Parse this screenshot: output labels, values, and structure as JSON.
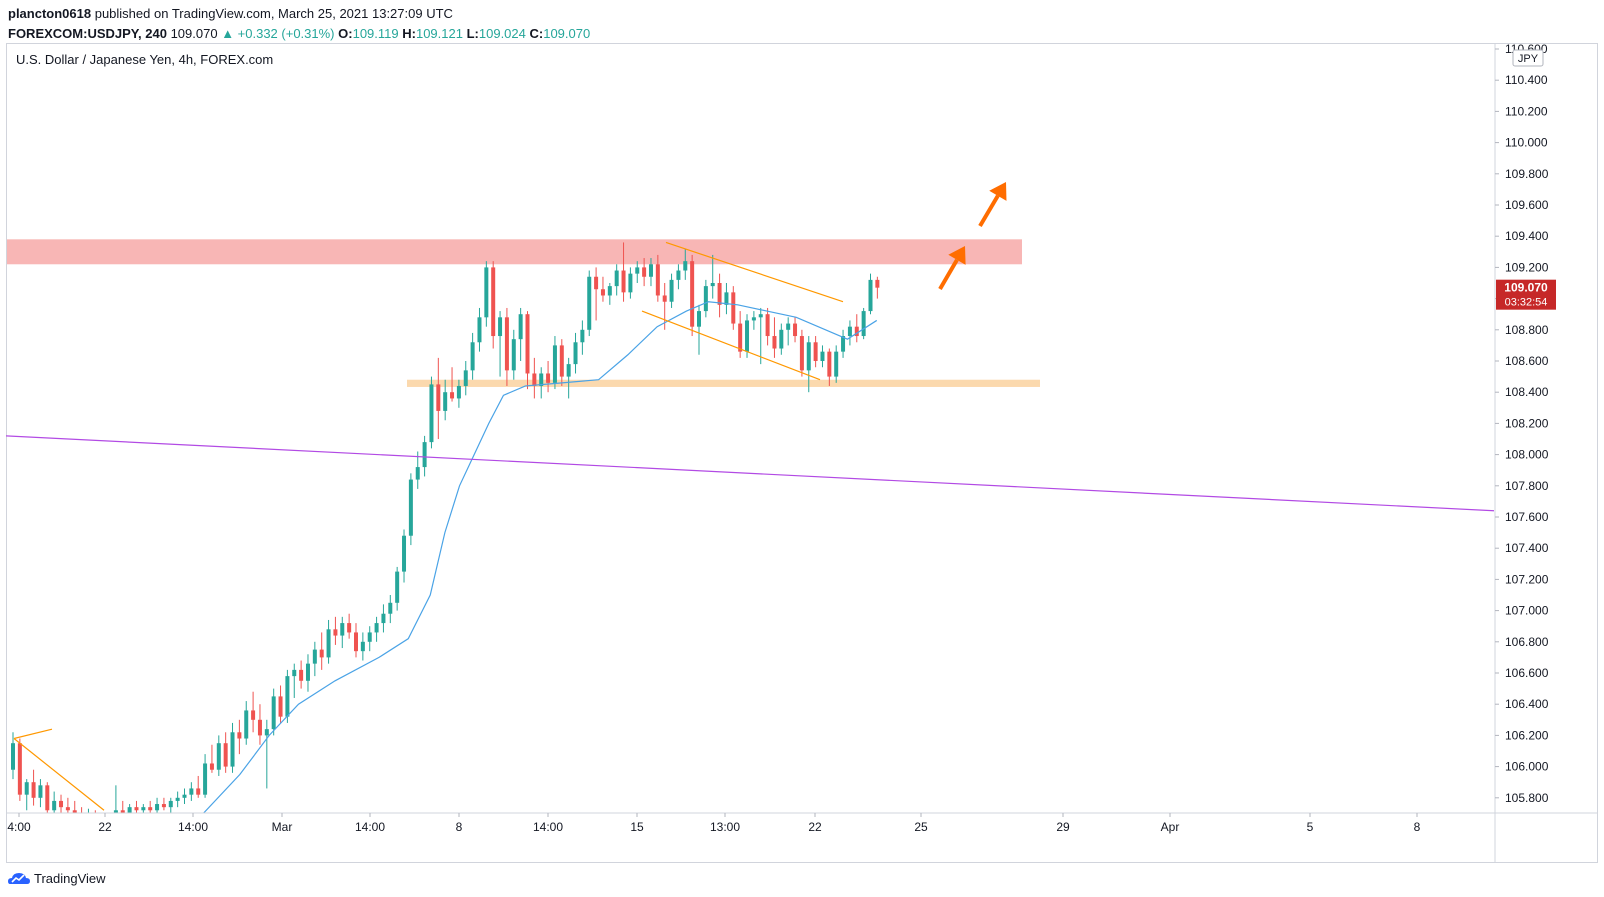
{
  "header": {
    "publisher": "plancton0618",
    "published_text": "published on TradingView.com, March 25, 2021 13:27:09 UTC",
    "symbol": "FOREXCOM:USDJPY, 240",
    "last": "109.070",
    "change": "▲ +0.332 (+0.31%)",
    "o_label": "O:",
    "o_value": "109.119",
    "h_label": "H:",
    "h_value": "109.121",
    "l_label": "L:",
    "l_value": "109.024",
    "c_label": "C:",
    "c_value": "109.070"
  },
  "chart_title": "U.S. Dollar / Japanese Yen, 4h, FOREX.com",
  "footer": {
    "brand": "TradingView"
  },
  "colors": {
    "up": "#26a69a",
    "down": "#ef5350",
    "ma": "#4aa3e6",
    "resistance": "#f7a9a8",
    "support": "#fbd5a5",
    "trendline": "#b24ae4",
    "channel": "#ff9800",
    "arrow": "#ff6d00",
    "price_tag": "#c62828"
  },
  "chart_data": {
    "type": "candlestick",
    "currency": "JPY",
    "y_ticks": [
      "110.600",
      "110.400",
      "110.200",
      "110.000",
      "109.800",
      "109.600",
      "109.400",
      "109.200",
      "109.000",
      "108.800",
      "108.600",
      "108.400",
      "108.200",
      "108.000",
      "107.800",
      "107.600",
      "107.400",
      "107.200",
      "107.000",
      "106.800",
      "106.600",
      "106.400",
      "106.200",
      "106.000",
      "105.800"
    ],
    "ylim": [
      105.7,
      110.65
    ],
    "x_ticks": [
      "4:00",
      "22",
      "14:00",
      "Mar",
      "14:00",
      "8",
      "14:00",
      "15",
      "13:00",
      "22",
      "25",
      "29",
      "Apr",
      "5",
      "8"
    ],
    "last_price": "109.070",
    "countdown": "03:32:54",
    "candles": [
      {
        "o": 105.98,
        "h": 106.22,
        "l": 105.92,
        "c": 106.15
      },
      {
        "o": 106.15,
        "h": 106.18,
        "l": 105.78,
        "c": 105.82
      },
      {
        "o": 105.82,
        "h": 105.92,
        "l": 105.72,
        "c": 105.9
      },
      {
        "o": 105.9,
        "h": 105.98,
        "l": 105.75,
        "c": 105.8
      },
      {
        "o": 105.8,
        "h": 105.92,
        "l": 105.74,
        "c": 105.88
      },
      {
        "o": 105.88,
        "h": 105.9,
        "l": 105.7,
        "c": 105.72
      },
      {
        "o": 105.72,
        "h": 105.84,
        "l": 105.7,
        "c": 105.78
      },
      {
        "o": 105.78,
        "h": 105.82,
        "l": 105.7,
        "c": 105.74
      },
      {
        "o": 105.74,
        "h": 105.8,
        "l": 105.7,
        "c": 105.72
      },
      {
        "o": 105.72,
        "h": 105.78,
        "l": 105.68,
        "c": 105.7
      },
      {
        "o": 105.7,
        "h": 105.74,
        "l": 105.66,
        "c": 105.68
      },
      {
        "o": 105.68,
        "h": 105.73,
        "l": 105.64,
        "c": 105.7
      },
      {
        "o": 105.7,
        "h": 105.72,
        "l": 105.62,
        "c": 105.66
      },
      {
        "o": 105.66,
        "h": 105.7,
        "l": 105.62,
        "c": 105.64
      },
      {
        "o": 105.64,
        "h": 105.68,
        "l": 105.6,
        "c": 105.66
      },
      {
        "o": 105.66,
        "h": 105.88,
        "l": 105.62,
        "c": 105.72
      },
      {
        "o": 105.72,
        "h": 105.78,
        "l": 105.66,
        "c": 105.7
      },
      {
        "o": 105.7,
        "h": 105.76,
        "l": 105.66,
        "c": 105.74
      },
      {
        "o": 105.74,
        "h": 105.78,
        "l": 105.68,
        "c": 105.72
      },
      {
        "o": 105.72,
        "h": 105.76,
        "l": 105.66,
        "c": 105.74
      },
      {
        "o": 105.74,
        "h": 105.78,
        "l": 105.7,
        "c": 105.72
      },
      {
        "o": 105.72,
        "h": 105.8,
        "l": 105.7,
        "c": 105.76
      },
      {
        "o": 105.76,
        "h": 105.8,
        "l": 105.72,
        "c": 105.74
      },
      {
        "o": 105.74,
        "h": 105.8,
        "l": 105.7,
        "c": 105.78
      },
      {
        "o": 105.78,
        "h": 105.84,
        "l": 105.74,
        "c": 105.8
      },
      {
        "o": 105.8,
        "h": 105.86,
        "l": 105.76,
        "c": 105.82
      },
      {
        "o": 105.82,
        "h": 105.9,
        "l": 105.78,
        "c": 105.86
      },
      {
        "o": 105.86,
        "h": 105.94,
        "l": 105.8,
        "c": 105.82
      },
      {
        "o": 105.82,
        "h": 106.08,
        "l": 105.8,
        "c": 106.02
      },
      {
        "o": 106.02,
        "h": 106.14,
        "l": 105.96,
        "c": 105.98
      },
      {
        "o": 105.98,
        "h": 106.2,
        "l": 105.94,
        "c": 106.15
      },
      {
        "o": 106.15,
        "h": 106.22,
        "l": 105.96,
        "c": 106.0
      },
      {
        "o": 106.0,
        "h": 106.28,
        "l": 105.96,
        "c": 106.22
      },
      {
        "o": 106.22,
        "h": 106.3,
        "l": 106.08,
        "c": 106.18
      },
      {
        "o": 106.18,
        "h": 106.42,
        "l": 106.14,
        "c": 106.36
      },
      {
        "o": 106.36,
        "h": 106.48,
        "l": 106.22,
        "c": 106.3
      },
      {
        "o": 106.3,
        "h": 106.4,
        "l": 106.14,
        "c": 106.2
      },
      {
        "o": 106.2,
        "h": 106.3,
        "l": 105.86,
        "c": 106.24
      },
      {
        "o": 106.24,
        "h": 106.5,
        "l": 106.2,
        "c": 106.45
      },
      {
        "o": 106.45,
        "h": 106.52,
        "l": 106.28,
        "c": 106.32
      },
      {
        "o": 106.32,
        "h": 106.62,
        "l": 106.28,
        "c": 106.58
      },
      {
        "o": 106.58,
        "h": 106.66,
        "l": 106.44,
        "c": 106.62
      },
      {
        "o": 106.62,
        "h": 106.68,
        "l": 106.5,
        "c": 106.55
      },
      {
        "o": 106.55,
        "h": 106.72,
        "l": 106.48,
        "c": 106.66
      },
      {
        "o": 106.66,
        "h": 106.8,
        "l": 106.58,
        "c": 106.75
      },
      {
        "o": 106.75,
        "h": 106.86,
        "l": 106.62,
        "c": 106.7
      },
      {
        "o": 106.7,
        "h": 106.94,
        "l": 106.66,
        "c": 106.88
      },
      {
        "o": 106.88,
        "h": 106.96,
        "l": 106.78,
        "c": 106.84
      },
      {
        "o": 106.84,
        "h": 106.96,
        "l": 106.76,
        "c": 106.92
      },
      {
        "o": 106.92,
        "h": 106.98,
        "l": 106.82,
        "c": 106.86
      },
      {
        "o": 106.86,
        "h": 106.92,
        "l": 106.7,
        "c": 106.74
      },
      {
        "o": 106.74,
        "h": 106.86,
        "l": 106.68,
        "c": 106.8
      },
      {
        "o": 106.8,
        "h": 106.9,
        "l": 106.74,
        "c": 106.86
      },
      {
        "o": 106.86,
        "h": 106.96,
        "l": 106.8,
        "c": 106.92
      },
      {
        "o": 106.92,
        "h": 107.04,
        "l": 106.86,
        "c": 106.98
      },
      {
        "o": 106.98,
        "h": 107.1,
        "l": 106.92,
        "c": 107.05
      },
      {
        "o": 107.05,
        "h": 107.28,
        "l": 107.0,
        "c": 107.25
      },
      {
        "o": 107.25,
        "h": 107.52,
        "l": 107.18,
        "c": 107.48
      },
      {
        "o": 107.48,
        "h": 107.88,
        "l": 107.42,
        "c": 107.84
      },
      {
        "o": 107.84,
        "h": 108.02,
        "l": 107.78,
        "c": 107.92
      },
      {
        "o": 107.92,
        "h": 108.12,
        "l": 107.86,
        "c": 108.08
      },
      {
        "o": 108.08,
        "h": 108.5,
        "l": 108.04,
        "c": 108.45
      },
      {
        "o": 108.45,
        "h": 108.62,
        "l": 108.1,
        "c": 108.28
      },
      {
        "o": 108.28,
        "h": 108.48,
        "l": 108.22,
        "c": 108.4
      },
      {
        "o": 108.4,
        "h": 108.56,
        "l": 108.34,
        "c": 108.36
      },
      {
        "o": 108.36,
        "h": 108.48,
        "l": 108.3,
        "c": 108.44
      },
      {
        "o": 108.44,
        "h": 108.6,
        "l": 108.38,
        "c": 108.54
      },
      {
        "o": 108.54,
        "h": 108.78,
        "l": 108.48,
        "c": 108.72
      },
      {
        "o": 108.72,
        "h": 108.94,
        "l": 108.66,
        "c": 108.88
      },
      {
        "o": 108.88,
        "h": 109.24,
        "l": 108.82,
        "c": 109.2
      },
      {
        "o": 109.2,
        "h": 109.24,
        "l": 108.68,
        "c": 108.76
      },
      {
        "o": 108.76,
        "h": 108.92,
        "l": 108.5,
        "c": 108.88
      },
      {
        "o": 108.88,
        "h": 108.94,
        "l": 108.44,
        "c": 108.54
      },
      {
        "o": 108.54,
        "h": 108.8,
        "l": 108.48,
        "c": 108.74
      },
      {
        "o": 108.74,
        "h": 108.94,
        "l": 108.6,
        "c": 108.9
      },
      {
        "o": 108.9,
        "h": 108.92,
        "l": 108.42,
        "c": 108.52
      },
      {
        "o": 108.52,
        "h": 108.62,
        "l": 108.36,
        "c": 108.44
      },
      {
        "o": 108.44,
        "h": 108.56,
        "l": 108.36,
        "c": 108.52
      },
      {
        "o": 108.52,
        "h": 108.6,
        "l": 108.4,
        "c": 108.46
      },
      {
        "o": 108.46,
        "h": 108.76,
        "l": 108.42,
        "c": 108.7
      },
      {
        "o": 108.7,
        "h": 108.74,
        "l": 108.44,
        "c": 108.5
      },
      {
        "o": 108.5,
        "h": 108.62,
        "l": 108.36,
        "c": 108.58
      },
      {
        "o": 108.58,
        "h": 108.78,
        "l": 108.52,
        "c": 108.72
      },
      {
        "o": 108.72,
        "h": 108.86,
        "l": 108.64,
        "c": 108.8
      },
      {
        "o": 108.8,
        "h": 109.18,
        "l": 108.76,
        "c": 109.14
      },
      {
        "o": 109.14,
        "h": 109.2,
        "l": 108.86,
        "c": 109.06
      },
      {
        "o": 109.06,
        "h": 109.14,
        "l": 108.98,
        "c": 109.02
      },
      {
        "o": 109.02,
        "h": 109.1,
        "l": 108.96,
        "c": 109.08
      },
      {
        "o": 109.08,
        "h": 109.22,
        "l": 109.02,
        "c": 109.18
      },
      {
        "o": 109.18,
        "h": 109.36,
        "l": 108.98,
        "c": 109.04
      },
      {
        "o": 109.04,
        "h": 109.2,
        "l": 109.0,
        "c": 109.16
      },
      {
        "o": 109.16,
        "h": 109.24,
        "l": 109.1,
        "c": 109.2
      },
      {
        "o": 109.2,
        "h": 109.26,
        "l": 109.08,
        "c": 109.14
      },
      {
        "o": 109.14,
        "h": 109.26,
        "l": 109.08,
        "c": 109.22
      },
      {
        "o": 109.22,
        "h": 109.28,
        "l": 108.98,
        "c": 109.02
      },
      {
        "o": 109.02,
        "h": 109.1,
        "l": 108.8,
        "c": 108.98
      },
      {
        "o": 108.98,
        "h": 109.16,
        "l": 108.94,
        "c": 109.12
      },
      {
        "o": 109.12,
        "h": 109.22,
        "l": 109.06,
        "c": 109.18
      },
      {
        "o": 109.18,
        "h": 109.32,
        "l": 109.12,
        "c": 109.24
      },
      {
        "o": 109.24,
        "h": 109.28,
        "l": 108.76,
        "c": 108.82
      },
      {
        "o": 108.82,
        "h": 108.96,
        "l": 108.64,
        "c": 108.92
      },
      {
        "o": 108.92,
        "h": 109.12,
        "l": 108.88,
        "c": 109.08
      },
      {
        "o": 109.08,
        "h": 109.28,
        "l": 109.0,
        "c": 109.1
      },
      {
        "o": 109.1,
        "h": 109.16,
        "l": 108.88,
        "c": 108.96
      },
      {
        "o": 108.96,
        "h": 109.1,
        "l": 108.9,
        "c": 109.04
      },
      {
        "o": 109.04,
        "h": 109.08,
        "l": 108.8,
        "c": 108.84
      },
      {
        "o": 108.84,
        "h": 108.92,
        "l": 108.62,
        "c": 108.66
      },
      {
        "o": 108.66,
        "h": 108.9,
        "l": 108.62,
        "c": 108.86
      },
      {
        "o": 108.86,
        "h": 108.92,
        "l": 108.8,
        "c": 108.88
      },
      {
        "o": 108.88,
        "h": 108.94,
        "l": 108.58,
        "c": 108.9
      },
      {
        "o": 108.9,
        "h": 108.94,
        "l": 108.7,
        "c": 108.76
      },
      {
        "o": 108.76,
        "h": 108.88,
        "l": 108.62,
        "c": 108.68
      },
      {
        "o": 108.68,
        "h": 108.84,
        "l": 108.64,
        "c": 108.8
      },
      {
        "o": 108.8,
        "h": 108.88,
        "l": 108.7,
        "c": 108.84
      },
      {
        "o": 108.84,
        "h": 108.88,
        "l": 108.72,
        "c": 108.76
      },
      {
        "o": 108.76,
        "h": 108.8,
        "l": 108.5,
        "c": 108.54
      },
      {
        "o": 108.54,
        "h": 108.76,
        "l": 108.4,
        "c": 108.72
      },
      {
        "o": 108.72,
        "h": 108.76,
        "l": 108.56,
        "c": 108.6
      },
      {
        "o": 108.6,
        "h": 108.7,
        "l": 108.56,
        "c": 108.66
      },
      {
        "o": 108.66,
        "h": 108.68,
        "l": 108.44,
        "c": 108.5
      },
      {
        "o": 108.5,
        "h": 108.7,
        "l": 108.46,
        "c": 108.66
      },
      {
        "o": 108.66,
        "h": 108.8,
        "l": 108.62,
        "c": 108.76
      },
      {
        "o": 108.76,
        "h": 108.86,
        "l": 108.7,
        "c": 108.82
      },
      {
        "o": 108.82,
        "h": 108.9,
        "l": 108.72,
        "c": 108.76
      },
      {
        "o": 108.76,
        "h": 108.94,
        "l": 108.74,
        "c": 108.92
      },
      {
        "o": 108.92,
        "h": 109.16,
        "l": 108.9,
        "c": 109.12
      },
      {
        "o": 109.12,
        "h": 109.14,
        "l": 109.0,
        "c": 109.07
      }
    ],
    "moving_average": [
      [
        52,
        105.7
      ],
      [
        62,
        105.95
      ],
      [
        70,
        106.2
      ],
      [
        78,
        106.4
      ],
      [
        88,
        106.55
      ],
      [
        100,
        106.7
      ],
      [
        108,
        106.82
      ],
      [
        114,
        107.1
      ],
      [
        118,
        107.5
      ],
      [
        122,
        107.8
      ],
      [
        126,
        108.0
      ],
      [
        130,
        108.2
      ],
      [
        134,
        108.38
      ],
      [
        140,
        108.44
      ],
      [
        150,
        108.46
      ],
      [
        160,
        108.48
      ],
      [
        168,
        108.64
      ],
      [
        176,
        108.82
      ],
      [
        184,
        108.92
      ],
      [
        190,
        108.98
      ],
      [
        198,
        108.96
      ],
      [
        206,
        108.92
      ],
      [
        214,
        108.88
      ],
      [
        222,
        108.8
      ],
      [
        228,
        108.74
      ],
      [
        236,
        108.86
      ]
    ],
    "annotations": {
      "resistance_zone": [
        109.22,
        109.38
      ],
      "support_zone": [
        108.44,
        108.48
      ],
      "trendline": [
        [
          0,
          108.12
        ],
        [
          1488,
          107.64
        ]
      ]
    }
  }
}
